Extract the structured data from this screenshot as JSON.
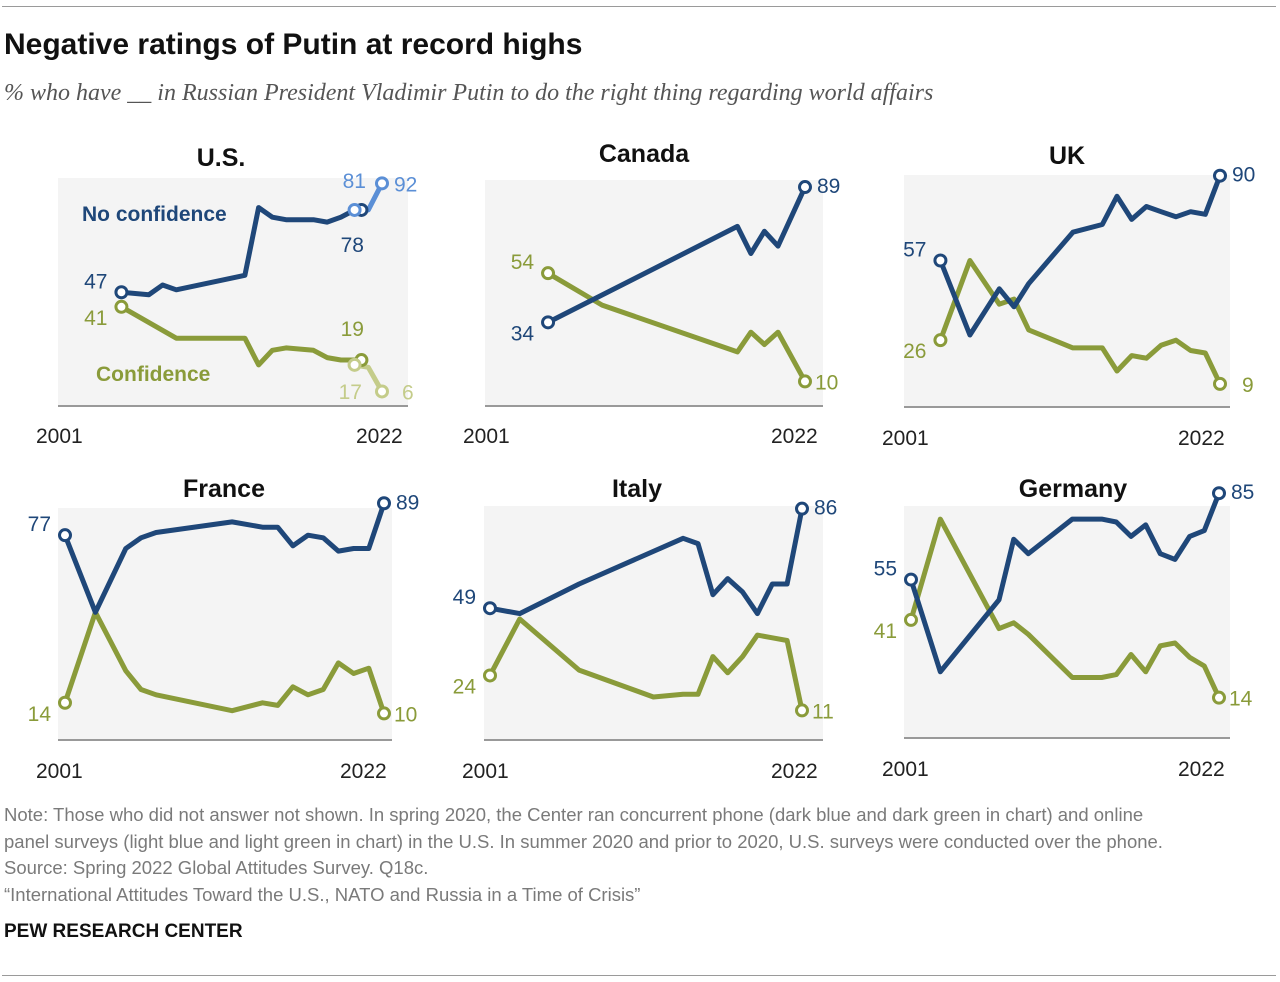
{
  "title": "Negative ratings of Putin at record highs",
  "subtitle": "% who have __ in Russian President Vladimir Putin to do the right thing regarding world affairs",
  "notes": {
    "line1": "Note: Those who did not answer not shown. In spring 2020, the Center ran concurrent phone (dark blue and dark green in chart) and online",
    "line2": "panel surveys (light blue and light green in chart) in the U.S. In summer 2020 and prior to 2020, U.S. surveys were conducted over the phone.",
    "source": "Source: Spring 2022 Global Attitudes Survey. Q18c.",
    "report": "“International Attitudes Toward the U.S., NATO and Russia in a Time of Crisis”"
  },
  "brand": "PEW RESEARCH CENTER",
  "colors": {
    "no_confidence": "#1f4779",
    "confidence": "#8a9b3a",
    "no_confidence_online": "#5b8fd6",
    "confidence_online": "#c4cc8a",
    "panel_bg": "#f4f4f4",
    "axis": "#999999"
  },
  "chart_data": [
    {
      "type": "line",
      "title": "U.S.",
      "xlim": [
        2001,
        2022
      ],
      "x_start_label": "2001",
      "x_end_label": "2022",
      "series": [
        {
          "name": "No confidence",
          "x": [
            2003,
            2005,
            2006,
            2007,
            2012,
            2013,
            2014,
            2015,
            2017,
            2018,
            2019,
            2020,
            2020.5
          ],
          "values": [
            47,
            46,
            50,
            48,
            54,
            82,
            78,
            77,
            77,
            76,
            78,
            81,
            81
          ]
        },
        {
          "name": "Confidence",
          "x": [
            2003,
            2007,
            2012,
            2013,
            2014,
            2015,
            2017,
            2018,
            2019,
            2020,
            2020.5
          ],
          "values": [
            41,
            28,
            28,
            17,
            23,
            24,
            23,
            20,
            19,
            19,
            19
          ]
        },
        {
          "name": "No confidence (online)",
          "x": [
            2020,
            2021,
            2022
          ],
          "values": [
            81,
            81,
            92
          ]
        },
        {
          "name": "Confidence (online)",
          "x": [
            2020,
            2021,
            2022
          ],
          "values": [
            17,
            16,
            6
          ]
        }
      ],
      "labels": {
        "nc_start": "47",
        "c_start": "41",
        "nc_phone": "78",
        "c_phone": "19",
        "nc_online": "81",
        "c_online": "17",
        "nc_end": "92",
        "c_end": "6"
      },
      "series_labels": {
        "no_confidence": "No confidence",
        "confidence": "Confidence"
      }
    },
    {
      "type": "line",
      "title": "Canada",
      "xlim": [
        2001,
        2022
      ],
      "x_start_label": "2001",
      "x_end_label": "2022",
      "series": [
        {
          "name": "No confidence",
          "x": [
            2003,
            2017,
            2018,
            2019,
            2020,
            2021,
            2022
          ],
          "values": [
            34,
            73,
            62,
            71,
            65,
            77,
            89
          ]
        },
        {
          "name": "Confidence",
          "x": [
            2003,
            2007,
            2017,
            2018,
            2019,
            2020,
            2021,
            2022
          ],
          "values": [
            54,
            41,
            22,
            30,
            25,
            30,
            20,
            10
          ]
        }
      ],
      "labels": {
        "nc_start": "34",
        "c_start": "54",
        "nc_end": "89",
        "c_end": "10"
      }
    },
    {
      "type": "line",
      "title": "UK",
      "xlim": [
        2001,
        2022
      ],
      "x_start_label": "2001",
      "x_end_label": "2022",
      "series": [
        {
          "name": "No confidence",
          "x": [
            2003,
            2005,
            2007,
            2008,
            2009,
            2012,
            2014,
            2015,
            2016,
            2017,
            2018,
            2019,
            2020,
            2021,
            2022
          ],
          "values": [
            57,
            28,
            46,
            39,
            48,
            68,
            71,
            82,
            73,
            78,
            76,
            74,
            76,
            75,
            90
          ]
        },
        {
          "name": "Confidence",
          "x": [
            2003,
            2005,
            2007,
            2008,
            2009,
            2012,
            2014,
            2015,
            2016,
            2017,
            2018,
            2019,
            2020,
            2021,
            2022
          ],
          "values": [
            26,
            57,
            40,
            42,
            30,
            23,
            23,
            14,
            20,
            19,
            24,
            26,
            22,
            21,
            9
          ]
        }
      ],
      "labels": {
        "nc_start": "57",
        "c_start": "26",
        "nc_end": "90",
        "c_end": "9"
      }
    },
    {
      "type": "line",
      "title": "France",
      "xlim": [
        2001,
        2022
      ],
      "x_start_label": "2001",
      "x_end_label": "2022",
      "series": [
        {
          "name": "No confidence",
          "x": [
            2001,
            2003,
            2005,
            2006,
            2007,
            2012,
            2014,
            2015,
            2016,
            2017,
            2018,
            2019,
            2020,
            2021,
            2022
          ],
          "values": [
            77,
            48,
            72,
            76,
            78,
            82,
            80,
            80,
            73,
            77,
            76,
            71,
            72,
            72,
            89
          ]
        },
        {
          "name": "Confidence",
          "x": [
            2001,
            2003,
            2005,
            2006,
            2007,
            2012,
            2014,
            2015,
            2016,
            2017,
            2018,
            2019,
            2020,
            2021,
            2022
          ],
          "values": [
            14,
            48,
            26,
            19,
            17,
            11,
            14,
            13,
            20,
            17,
            19,
            29,
            25,
            27,
            10
          ]
        }
      ],
      "labels": {
        "nc_start": "77",
        "c_start": "14",
        "nc_end": "89",
        "c_end": "10"
      }
    },
    {
      "type": "line",
      "title": "Italy",
      "xlim": [
        2001,
        2022
      ],
      "x_start_label": "2001",
      "x_end_label": "2022",
      "series": [
        {
          "name": "No confidence",
          "x": [
            2001,
            2003,
            2007,
            2014,
            2015,
            2016,
            2017,
            2018,
            2019,
            2020,
            2021,
            2022
          ],
          "values": [
            49,
            47,
            58,
            75,
            73,
            54,
            60,
            55,
            47,
            58,
            58,
            86
          ]
        },
        {
          "name": "Confidence",
          "x": [
            2001,
            2003,
            2007,
            2012,
            2014,
            2015,
            2016,
            2017,
            2018,
            2019,
            2020,
            2021,
            2022
          ],
          "values": [
            24,
            45,
            26,
            16,
            17,
            17,
            31,
            25,
            31,
            39,
            38,
            37,
            11
          ]
        }
      ],
      "labels": {
        "nc_start": "49",
        "c_start": "24",
        "nc_end": "86",
        "c_end": "11"
      }
    },
    {
      "type": "line",
      "title": "Germany",
      "xlim": [
        2001,
        2022
      ],
      "x_start_label": "2001",
      "x_end_label": "2022",
      "series": [
        {
          "name": "No confidence",
          "x": [
            2001,
            2003,
            2007,
            2008,
            2009,
            2012,
            2014,
            2015,
            2016,
            2017,
            2018,
            2019,
            2020,
            2021,
            2022
          ],
          "values": [
            55,
            23,
            48,
            69,
            64,
            76,
            76,
            75,
            70,
            74,
            64,
            62,
            70,
            72,
            85
          ]
        },
        {
          "name": "Confidence",
          "x": [
            2001,
            2003,
            2007,
            2008,
            2009,
            2012,
            2014,
            2015,
            2016,
            2017,
            2018,
            2019,
            2020,
            2021,
            2022
          ],
          "values": [
            41,
            76,
            38,
            40,
            36,
            21,
            21,
            22,
            29,
            23,
            32,
            33,
            28,
            25,
            14
          ]
        }
      ],
      "labels": {
        "nc_start": "55",
        "c_start": "41",
        "nc_end": "85",
        "c_end": "14"
      }
    }
  ]
}
